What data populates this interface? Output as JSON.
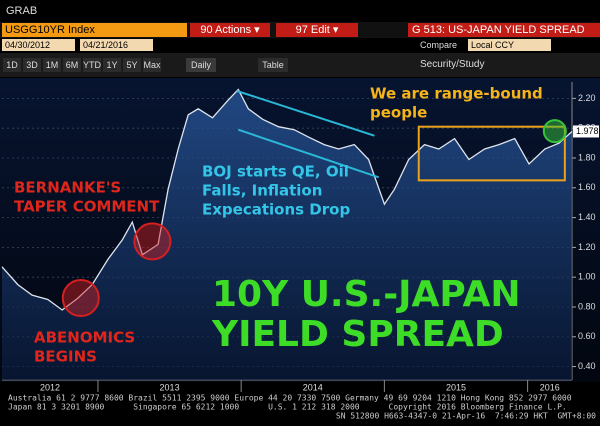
{
  "window_title": "GRAB",
  "header": {
    "ticker": "USGG10YR Index",
    "actions": "90 Actions ▾",
    "edit": "97 Edit ▾",
    "chart_title": "G 513: US-JAPAN YIELD SPREAD",
    "start_date": "04/30/2012",
    "end_date": "04/21/2016",
    "compare": "Compare",
    "currency": "Local CCY"
  },
  "toolbar": {
    "ranges": [
      "1D",
      "3D",
      "1M",
      "6M",
      "YTD",
      "1Y",
      "5Y",
      "Max"
    ],
    "frequency": "Daily",
    "table": "Table",
    "study": "Security/Study"
  },
  "chart_data": {
    "type": "line",
    "title": [
      "10Y U.S.-JAPAN",
      "YIELD SPREAD"
    ],
    "title_color": "#3ddc27",
    "x": [
      2012.33,
      2012.44,
      2012.54,
      2012.65,
      2012.75,
      2012.86,
      2012.96,
      2013.07,
      2013.17,
      2013.24,
      2013.31,
      2013.42,
      2013.49,
      2013.56,
      2013.63,
      2013.7,
      2013.8,
      2013.91,
      2013.98,
      2014.05,
      2014.15,
      2014.26,
      2014.37,
      2014.47,
      2014.58,
      2014.68,
      2014.79,
      2014.89,
      2015.0,
      2015.07,
      2015.17,
      2015.28,
      2015.38,
      2015.49,
      2015.59,
      2015.7,
      2015.8,
      2015.91,
      2016.01,
      2016.12,
      2016.22,
      2016.31
    ],
    "values": [
      1.07,
      0.95,
      0.88,
      0.85,
      0.78,
      0.86,
      0.95,
      1.12,
      1.25,
      1.37,
      1.15,
      1.22,
      1.59,
      1.86,
      2.09,
      2.13,
      2.07,
      2.19,
      2.26,
      2.13,
      2.06,
      2.01,
      1.99,
      1.94,
      1.89,
      1.86,
      1.89,
      1.79,
      1.49,
      1.59,
      1.79,
      1.89,
      1.86,
      1.93,
      1.79,
      1.86,
      1.89,
      1.93,
      1.76,
      1.86,
      1.9,
      1.978
    ],
    "color": "#dfe4ee",
    "fill": "#24508f",
    "xlim": [
      2012.33,
      2016.31
    ],
    "xticks": [
      2012,
      2013,
      2014,
      2015,
      2016
    ],
    "ylim": [
      0.31,
      2.31
    ],
    "yticks": [
      {
        "value": 0.4,
        "label": "0.40"
      },
      {
        "value": 0.6,
        "label": "0.60"
      },
      {
        "value": 0.8,
        "label": "0.80"
      },
      {
        "value": 1,
        "label": "1.00"
      },
      {
        "value": 1.2,
        "label": "1.20"
      },
      {
        "value": 1.4,
        "label": "1.40"
      },
      {
        "value": 1.6,
        "label": "1.60"
      },
      {
        "value": 1.8,
        "label": "1.80"
      },
      {
        "value": 2,
        "label": "2.00"
      },
      {
        "value": 2.2,
        "label": "2.20"
      }
    ],
    "grid": true,
    "annotations": [
      {
        "text": [
          "We are range-bound",
          "people"
        ],
        "color": "#f4b41a"
      },
      {
        "text": [
          "BOJ starts QE, Oil",
          "Falls, Inflation",
          "Expecations Drop"
        ],
        "color": "#33c6e8"
      },
      {
        "text": [
          "BERNANKE'S",
          "TAPER COMMENT"
        ],
        "color": "#e0261b"
      },
      {
        "text": [
          "ABENOMICS",
          "BEGINS"
        ],
        "color": "#e0261b"
      }
    ],
    "range_box": {
      "x": [
        2015.24,
        2016.26
      ],
      "y": [
        1.65,
        2.01
      ],
      "color": "#e8a21c"
    },
    "channel": {
      "color": "#2ab8d8",
      "lines": [
        {
          "x": [
            2013.97,
            2014.93
          ],
          "y": [
            2.25,
            1.95
          ]
        },
        {
          "x": [
            2013.98,
            2014.96
          ],
          "y": [
            1.99,
            1.67
          ]
        }
      ]
    },
    "circles": [
      {
        "x": 2012.88,
        "y": 0.86,
        "color": "#d42020"
      },
      {
        "x": 2013.38,
        "y": 1.24,
        "color": "#d42020"
      },
      {
        "x": 2016.19,
        "y": 1.98,
        "color": "#35c43a"
      }
    ]
  },
  "footer": [
    "Australia 61 2 9777 8600 Brazil 5511 2395 9000 Europe 44 20 7330 7500 Germany 49 69 9204 1210 Hong Kong 852 2977 6000",
    "Japan 81 3 3201 8900      Singapore 65 6212 1000      U.S. 1 212 318 2000      Copyright 2016 Bloomberg Finance L.P.",
    "SN 512800 H663-4347-0 21-Apr-16  7:46:29 HKT  GMT+8:00"
  ]
}
